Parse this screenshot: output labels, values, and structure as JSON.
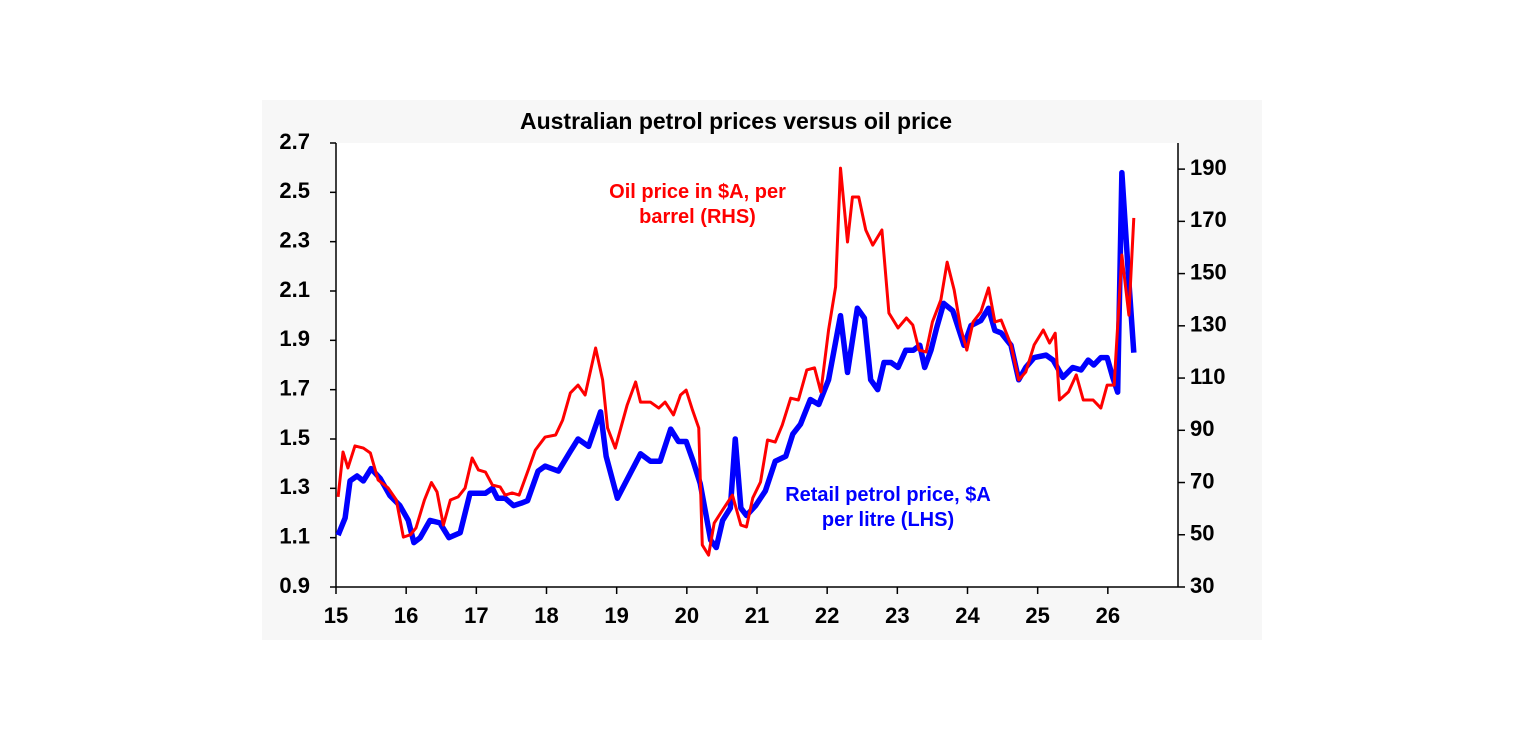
{
  "chart_data": {
    "type": "line",
    "title": "Australian petrol prices versus oil price",
    "xlim": [
      15,
      27
    ],
    "xticks": [
      15,
      16,
      17,
      18,
      19,
      20,
      21,
      22,
      23,
      24,
      25,
      26
    ],
    "ylim": [
      0.9,
      2.7
    ],
    "yticks": [
      0.9,
      1.1,
      1.3,
      1.5,
      1.7,
      1.9,
      2.1,
      2.3,
      2.5,
      2.7
    ],
    "y2lim": [
      30,
      200
    ],
    "y2ticks": [
      30,
      50,
      70,
      90,
      110,
      130,
      150,
      170,
      190
    ],
    "series": [
      {
        "name": "Oil price in $A, per barrel (RHS)",
        "color": "#ff0000",
        "axis": "y2",
        "x": [
          15.03,
          15.1,
          15.17,
          15.27,
          15.39,
          15.49,
          15.6,
          15.74,
          15.86,
          15.96,
          16.06,
          16.14,
          16.26,
          16.36,
          16.44,
          16.53,
          16.63,
          16.74,
          16.84,
          16.94,
          17.03,
          17.13,
          17.23,
          17.34,
          17.41,
          17.51,
          17.61,
          17.74,
          17.84,
          17.98,
          18.13,
          18.23,
          18.34,
          18.45,
          18.55,
          18.7,
          18.8,
          18.87,
          18.98,
          19.15,
          19.27,
          19.34,
          19.48,
          19.6,
          19.69,
          19.81,
          19.91,
          19.99,
          20.08,
          20.17,
          20.22,
          20.31,
          20.39,
          20.51,
          20.65,
          20.77,
          20.85,
          20.94,
          21.05,
          21.15,
          21.26,
          21.36,
          21.48,
          21.59,
          21.71,
          21.82,
          21.91,
          22.02,
          22.12,
          22.19,
          22.29,
          22.36,
          22.45,
          22.55,
          22.65,
          22.78,
          22.88,
          23.01,
          23.13,
          23.22,
          23.31,
          23.41,
          23.5,
          23.62,
          23.71,
          23.81,
          23.9,
          23.99,
          24.08,
          24.19,
          24.3,
          24.39,
          24.48,
          24.62,
          24.73,
          24.83,
          24.95,
          25.08,
          25.17,
          25.25,
          25.31,
          25.44,
          25.55,
          25.65,
          25.79,
          25.9,
          25.99,
          26.09,
          26.2,
          26.3,
          26.37
        ],
        "values": [
          64.5,
          81.7,
          75.6,
          84,
          83.2,
          81.3,
          71,
          68,
          63.3,
          49.1,
          50,
          52.6,
          63.3,
          70,
          66.4,
          53.7,
          63.3,
          64.5,
          67.9,
          79.4,
          74.8,
          74,
          69,
          68.3,
          65.2,
          66,
          65.2,
          74.8,
          82.4,
          87.4,
          88.2,
          93.9,
          104.3,
          107.3,
          103.5,
          121.5,
          109.3,
          90.9,
          83.2,
          99.7,
          108.5,
          100.8,
          100.8,
          98.5,
          100.8,
          95.9,
          103.5,
          105.4,
          97.8,
          90.9,
          46.1,
          42.2,
          54.5,
          59.5,
          65.2,
          53.7,
          53,
          64.1,
          70.2,
          86.3,
          85.5,
          92,
          102.3,
          101.6,
          113.1,
          113.9,
          104.7,
          128.4,
          144.9,
          190.4,
          162.1,
          179.3,
          179.3,
          166.7,
          160.9,
          166.7,
          134.9,
          129.2,
          133,
          130.3,
          120.7,
          120,
          131.5,
          139.9,
          154.4,
          143.7,
          129.5,
          120.7,
          131.5,
          135.3,
          144.5,
          131.5,
          132.2,
          122.7,
          109.3,
          112.3,
          122.7,
          128.4,
          123.4,
          127.2,
          101.6,
          104.7,
          111.2,
          101.6,
          101.6,
          98.5,
          107.3,
          107.3,
          157.1,
          134.1,
          171.3
        ]
      },
      {
        "name": "Retail petrol price, $A per litre (LHS)",
        "color": "#0000ff",
        "x": [
          15.03,
          15.13,
          15.2,
          15.3,
          15.39,
          15.5,
          15.63,
          15.77,
          15.91,
          16.03,
          16.11,
          16.2,
          16.34,
          16.48,
          16.61,
          16.77,
          16.91,
          17.13,
          17.23,
          17.3,
          17.41,
          17.53,
          17.64,
          17.73,
          17.88,
          17.98,
          18.17,
          18.34,
          18.45,
          18.6,
          18.77,
          18.85,
          19.01,
          19.12,
          19.34,
          19.48,
          19.62,
          19.77,
          19.88,
          19.99,
          20.09,
          20.19,
          20.34,
          20.42,
          20.51,
          20.62,
          20.69,
          20.77,
          20.85,
          20.98,
          21.12,
          21.26,
          21.41,
          21.51,
          21.62,
          21.76,
          21.88,
          22.02,
          22.19,
          22.29,
          22.43,
          22.53,
          22.62,
          22.72,
          22.81,
          22.91,
          23.01,
          23.12,
          23.23,
          23.32,
          23.39,
          23.48,
          23.56,
          23.66,
          23.79,
          23.95,
          24.05,
          24.19,
          24.3,
          24.39,
          24.48,
          24.62,
          24.73,
          24.83,
          24.95,
          25.12,
          25.22,
          25.36,
          25.5,
          25.62,
          25.72,
          25.8,
          25.9,
          25.99,
          26.07,
          26.14,
          26.2,
          26.29,
          26.37
        ],
        "values": [
          1.11,
          1.18,
          1.33,
          1.35,
          1.33,
          1.38,
          1.34,
          1.27,
          1.23,
          1.17,
          1.08,
          1.1,
          1.17,
          1.16,
          1.1,
          1.12,
          1.28,
          1.28,
          1.3,
          1.26,
          1.26,
          1.23,
          1.24,
          1.25,
          1.37,
          1.39,
          1.37,
          1.45,
          1.5,
          1.47,
          1.61,
          1.43,
          1.26,
          1.32,
          1.44,
          1.41,
          1.41,
          1.54,
          1.49,
          1.49,
          1.41,
          1.32,
          1.09,
          1.06,
          1.17,
          1.22,
          1.5,
          1.22,
          1.19,
          1.23,
          1.29,
          1.41,
          1.43,
          1.52,
          1.56,
          1.66,
          1.64,
          1.74,
          2.0,
          1.77,
          2.03,
          1.99,
          1.74,
          1.7,
          1.81,
          1.81,
          1.79,
          1.86,
          1.86,
          1.88,
          1.79,
          1.86,
          1.95,
          2.05,
          2.02,
          1.88,
          1.96,
          1.98,
          2.03,
          1.94,
          1.93,
          1.88,
          1.74,
          1.79,
          1.83,
          1.84,
          1.82,
          1.75,
          1.79,
          1.78,
          1.82,
          1.8,
          1.83,
          1.83,
          1.75,
          1.69,
          2.58,
          2.18,
          1.85
        ]
      }
    ]
  }
}
